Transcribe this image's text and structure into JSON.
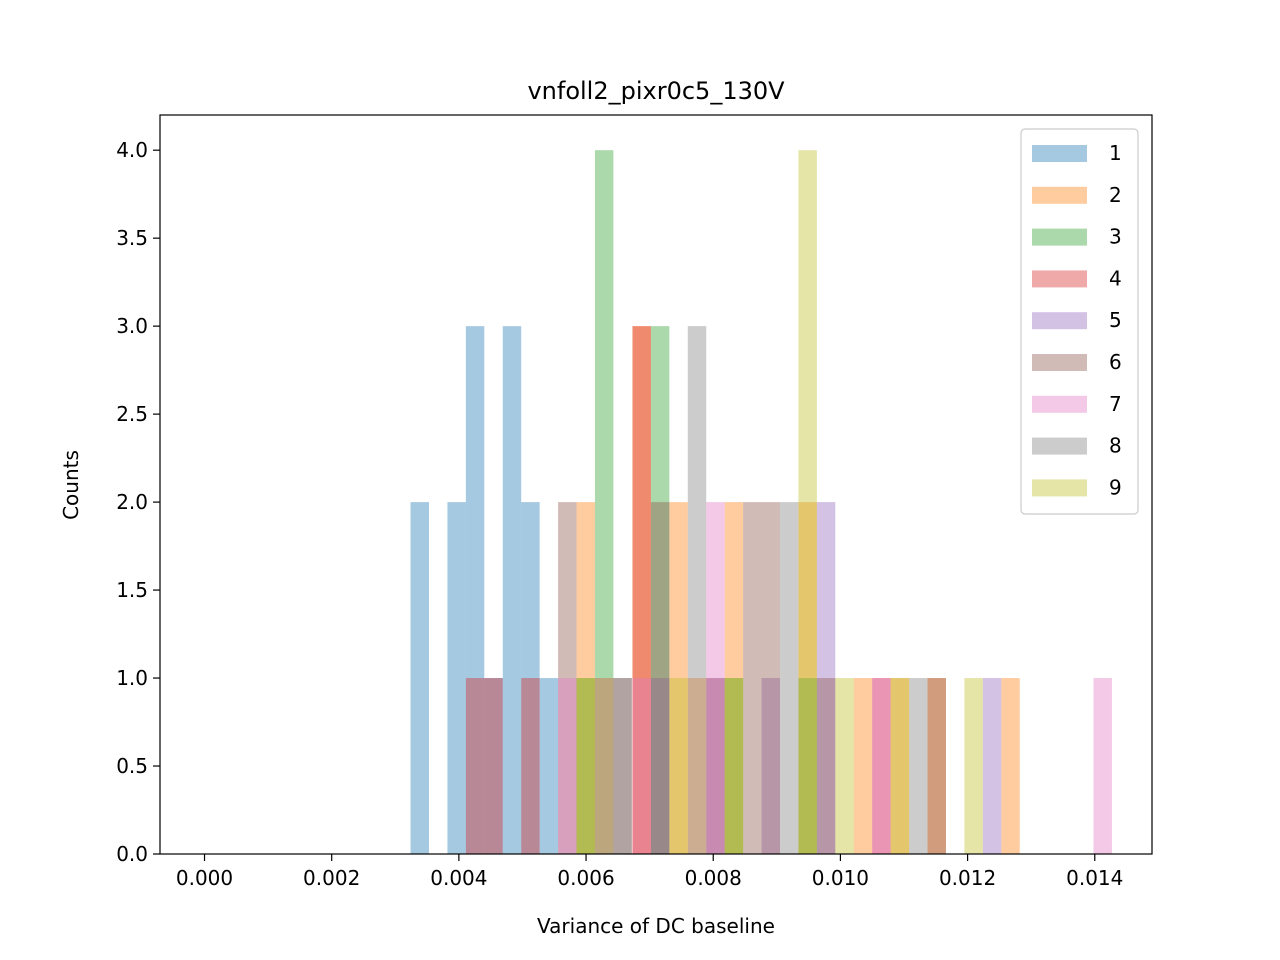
{
  "chart_data": {
    "type": "bar",
    "title": "vnfoll2_pixr0c5_130V",
    "xlabel": "Variance of DC baseline",
    "ylabel": "Counts",
    "xlim": [
      -0.0007,
      0.0149
    ],
    "ylim": [
      0,
      4.2
    ],
    "bin_width": 0.00029,
    "x_ticks": [
      "0.000",
      "0.002",
      "0.004",
      "0.006",
      "0.008",
      "0.010",
      "0.012",
      "0.014"
    ],
    "x_tick_values": [
      0.0,
      0.002,
      0.004,
      0.006,
      0.008,
      0.01,
      0.012,
      0.014
    ],
    "y_ticks": [
      "0.0",
      "0.5",
      "1.0",
      "1.5",
      "2.0",
      "2.5",
      "3.0",
      "3.5",
      "4.0"
    ],
    "y_tick_values": [
      0.0,
      0.5,
      1.0,
      1.5,
      2.0,
      2.5,
      3.0,
      3.5,
      4.0
    ],
    "legend_position": "top-right",
    "alpha": 0.4,
    "series": [
      {
        "name": "1",
        "color": "#1f77b4",
        "bins": [
          [
            0.00324,
            2
          ],
          [
            0.00382,
            2
          ],
          [
            0.00411,
            3
          ],
          [
            0.0044,
            1
          ],
          [
            0.00469,
            3
          ],
          [
            0.00498,
            2
          ],
          [
            0.00527,
            1
          ]
        ]
      },
      {
        "name": "2",
        "color": "#ff7f0e",
        "bins": [
          [
            0.00585,
            2
          ],
          [
            0.00673,
            3
          ],
          [
            0.00731,
            2
          ],
          [
            0.0076,
            1
          ],
          [
            0.00818,
            2
          ],
          [
            0.00934,
            2
          ],
          [
            0.01021,
            1
          ],
          [
            0.01079,
            1
          ],
          [
            0.01137,
            1
          ],
          [
            0.01253,
            1
          ]
        ]
      },
      {
        "name": "3",
        "color": "#2ca02c",
        "bins": [
          [
            0.00585,
            1
          ],
          [
            0.00614,
            4
          ],
          [
            0.00702,
            3
          ],
          [
            0.00818,
            1
          ],
          [
            0.00934,
            1
          ]
        ]
      },
      {
        "name": "4",
        "color": "#d62728",
        "bins": [
          [
            0.00411,
            1
          ],
          [
            0.0044,
            1
          ],
          [
            0.00498,
            1
          ],
          [
            0.00673,
            3
          ],
          [
            0.0105,
            1
          ]
        ]
      },
      {
        "name": "5",
        "color": "#9467bd",
        "bins": [
          [
            0.00614,
            1
          ],
          [
            0.00702,
            1
          ],
          [
            0.00789,
            1
          ],
          [
            0.00876,
            1
          ],
          [
            0.00963,
            2
          ],
          [
            0.01224,
            1
          ]
        ]
      },
      {
        "name": "6",
        "color": "#8c564b",
        "bins": [
          [
            0.00556,
            2
          ],
          [
            0.00643,
            1
          ],
          [
            0.00702,
            2
          ],
          [
            0.00789,
            1
          ],
          [
            0.00847,
            2
          ],
          [
            0.00876,
            2
          ],
          [
            0.00963,
            1
          ],
          [
            0.01137,
            1
          ]
        ]
      },
      {
        "name": "7",
        "color": "#e377c2",
        "bins": [
          [
            0.00556,
            1
          ],
          [
            0.00614,
            1
          ],
          [
            0.00673,
            1
          ],
          [
            0.00789,
            2
          ],
          [
            0.0105,
            1
          ],
          [
            0.01398,
            1
          ]
        ]
      },
      {
        "name": "8",
        "color": "#7f7f7f",
        "bins": [
          [
            0.00643,
            1
          ],
          [
            0.0076,
            3
          ],
          [
            0.00905,
            2
          ],
          [
            0.01108,
            1
          ]
        ]
      },
      {
        "name": "9",
        "color": "#bcbd22",
        "bins": [
          [
            0.00585,
            1
          ],
          [
            0.00614,
            1
          ],
          [
            0.00731,
            1
          ],
          [
            0.00818,
            1
          ],
          [
            0.00934,
            4
          ],
          [
            0.00992,
            1
          ],
          [
            0.01079,
            1
          ],
          [
            0.01195,
            1
          ]
        ]
      }
    ]
  }
}
